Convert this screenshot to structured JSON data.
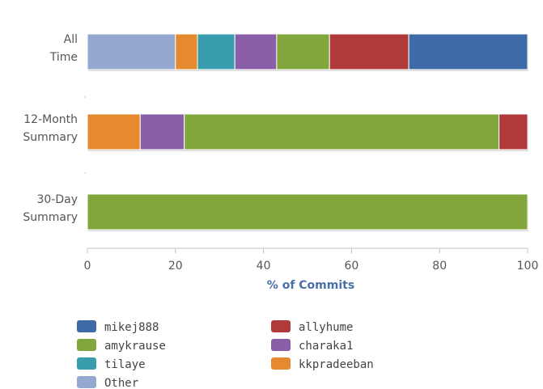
{
  "chart_data": {
    "type": "bar",
    "orientation": "horizontal",
    "stacked": true,
    "categories": [
      [
        "All",
        "Time"
      ],
      [
        "12-Month",
        "Summary"
      ],
      [
        "30-Day",
        "Summary"
      ]
    ],
    "series": [
      {
        "name": "Other",
        "color": "#93a9d0",
        "values": [
          20,
          0,
          0
        ]
      },
      {
        "name": "kkpradeeban",
        "color": "#e58a2e",
        "values": [
          5,
          12,
          0
        ]
      },
      {
        "name": "tilaye",
        "color": "#3a9dae",
        "values": [
          8.5,
          0,
          0
        ]
      },
      {
        "name": "charaka1",
        "color": "#8a5ea8",
        "values": [
          9.5,
          10,
          0
        ]
      },
      {
        "name": "amykrause",
        "color": "#80a63c",
        "values": [
          12,
          71.5,
          100
        ]
      },
      {
        "name": "allyhume",
        "color": "#b03a3a",
        "values": [
          18,
          6.5,
          0
        ]
      },
      {
        "name": "mikej888",
        "color": "#3e6aa8",
        "values": [
          27,
          0,
          0
        ]
      }
    ],
    "xlabel": "% of Commits",
    "xlim": [
      0,
      100
    ],
    "xticks": [
      0,
      20,
      40,
      60,
      80,
      100
    ],
    "grid": false,
    "legend": {
      "placement": "bottom",
      "order": [
        "mikej888",
        "allyhume",
        "amykrause",
        "charaka1",
        "tilaye",
        "kkpradeeban",
        "Other"
      ]
    }
  }
}
